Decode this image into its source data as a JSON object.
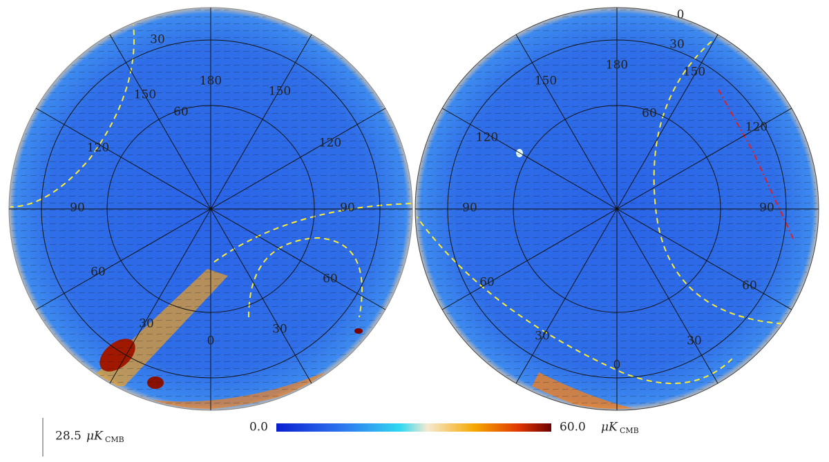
{
  "left_map": {
    "grid_labels": [
      "30",
      "150",
      "180",
      "60",
      "150",
      "120",
      "120",
      "90",
      "90",
      "60",
      "60",
      "30",
      "30",
      "0"
    ]
  },
  "right_map": {
    "grid_labels": [
      "0",
      "30",
      "180",
      "150",
      "150",
      "60",
      "120",
      "120",
      "90",
      "90",
      "60",
      "60",
      "30",
      "30",
      "0"
    ]
  },
  "colorbar": {
    "ticks": [
      {
        "value": 0,
        "label": "0.0"
      },
      {
        "value": 60,
        "label": "60.0"
      }
    ],
    "unit": "μK",
    "unit_subscript": "CMB"
  },
  "scale_bar": {
    "value": 28.5
  }
}
